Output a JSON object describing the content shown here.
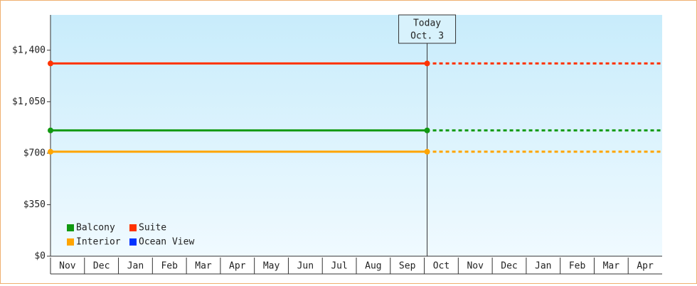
{
  "chart_data": {
    "type": "line",
    "categories": [
      "Nov",
      "Dec",
      "Jan",
      "Feb",
      "Mar",
      "Apr",
      "May",
      "Jun",
      "Jul",
      "Aug",
      "Sep",
      "Oct",
      "Nov",
      "Dec",
      "Jan",
      "Feb",
      "Mar",
      "Apr"
    ],
    "ylim": [
      0,
      1640
    ],
    "yticks": [
      {
        "value": 0,
        "label": "$0"
      },
      {
        "value": 350,
        "label": "$350"
      },
      {
        "value": 700,
        "label": "$700"
      },
      {
        "value": 1050,
        "label": "$1,050"
      },
      {
        "value": 1400,
        "label": "$1,400"
      }
    ],
    "annotation": [
      "Today",
      "Oct. 3"
    ],
    "series": [
      {
        "name": "Balcony",
        "color": "#119911",
        "value": 855
      },
      {
        "name": "Suite",
        "color": "#ff3300",
        "value": 1310
      },
      {
        "name": "Interior",
        "color": "#ffa500",
        "value": 710
      },
      {
        "name": "Ocean View",
        "color": "#0033ff",
        "value": null
      }
    ]
  }
}
